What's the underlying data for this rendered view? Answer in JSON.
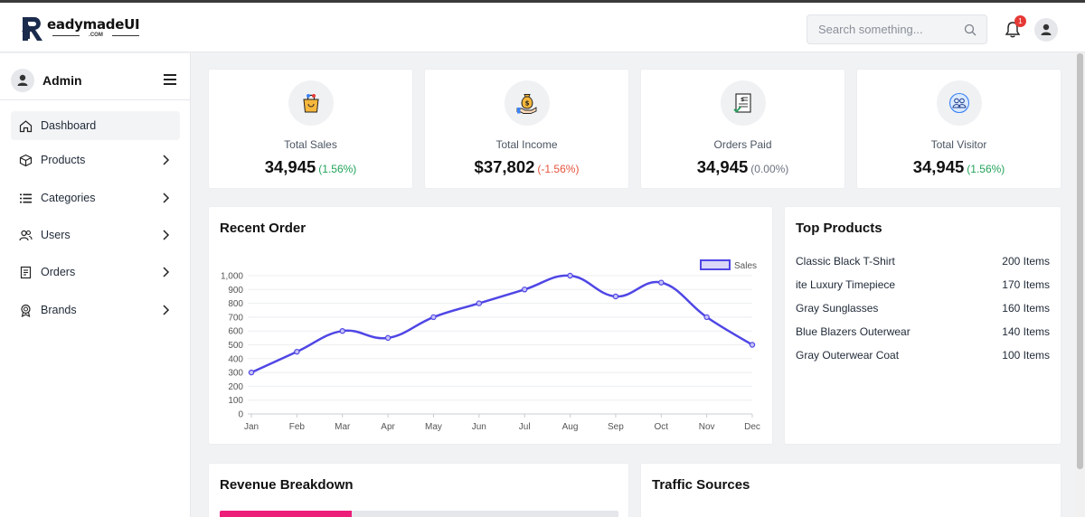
{
  "brand": {
    "name": "eadymadeUI",
    "suffix": ".COM"
  },
  "search": {
    "placeholder": "Search something..."
  },
  "notifications": {
    "count": "1"
  },
  "sidebar": {
    "title": "Admin",
    "items": [
      {
        "label": "Dashboard",
        "icon": "home-icon",
        "active": true
      },
      {
        "label": "Products",
        "icon": "box-icon"
      },
      {
        "label": "Categories",
        "icon": "list-icon"
      },
      {
        "label": "Users",
        "icon": "users-icon"
      },
      {
        "label": "Orders",
        "icon": "receipt-icon"
      },
      {
        "label": "Brands",
        "icon": "badge-icon"
      }
    ]
  },
  "stats": [
    {
      "label": "Total Sales",
      "value": "34,945",
      "change": "(1.56%)",
      "change_color": "#22a35a",
      "icon": "shopping-bag-icon"
    },
    {
      "label": "Total Income",
      "value": "$37,802",
      "change": "(-1.56%)",
      "change_color": "#e5533d",
      "icon": "money-bag-icon"
    },
    {
      "label": "Orders Paid",
      "value": "34,945",
      "change": "(0.00%)",
      "change_color": "#6b7280",
      "icon": "invoice-icon"
    },
    {
      "label": "Total Visitor",
      "value": "34,945",
      "change": "(1.56%)",
      "change_color": "#22a35a",
      "icon": "visitors-icon"
    }
  ],
  "recent_order": {
    "title": "Recent Order"
  },
  "chart_data": {
    "type": "line",
    "categories": [
      "Jan",
      "Feb",
      "Mar",
      "Apr",
      "May",
      "Jun",
      "Jul",
      "Aug",
      "Sep",
      "Oct",
      "Nov",
      "Dec"
    ],
    "series": [
      {
        "name": "Sales",
        "values": [
          300,
          450,
          600,
          550,
          700,
          800,
          900,
          1000,
          850,
          950,
          700,
          500
        ]
      }
    ],
    "yticks": [
      "0",
      "100",
      "200",
      "300",
      "400",
      "500",
      "600",
      "700",
      "800",
      "900",
      "1,000"
    ],
    "ylim": [
      0,
      1000
    ],
    "grid": true,
    "legend": "top-right",
    "color": "#4f46e5"
  },
  "top_products": {
    "title": "Top Products",
    "items": [
      {
        "name": "Classic Black T-Shirt",
        "value": "200 Items"
      },
      {
        "name": "ite Luxury Timepiece",
        "value": "170 Items"
      },
      {
        "name": "Gray Sunglasses",
        "value": "160 Items"
      },
      {
        "name": "Blue Blazers Outerwear",
        "value": "140 Items"
      },
      {
        "name": "Gray Outerwear Coat",
        "value": "100 Items"
      }
    ]
  },
  "revenue": {
    "title": "Revenue Breakdown",
    "fill_fraction": 0.33,
    "fill_color": "#ec1e79"
  },
  "traffic": {
    "title": "Traffic Sources"
  }
}
